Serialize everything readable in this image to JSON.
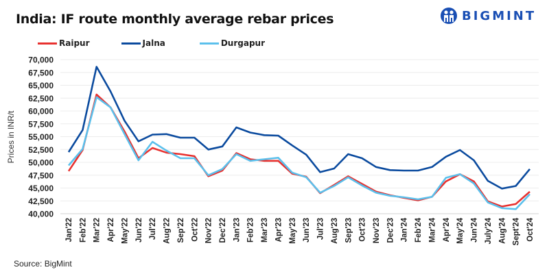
{
  "logo": {
    "text": "BIGMINT",
    "icon": "bigmint-people-icon",
    "color": "#1a4fb4"
  },
  "source": "Source: BigMint",
  "chart_data": {
    "type": "line",
    "title": "India: IF route monthly average rebar prices",
    "xlabel": "",
    "ylabel": "Prices in INR/t",
    "ylim": [
      40000,
      70000
    ],
    "yticks": [
      40000,
      42500,
      45000,
      47500,
      50000,
      52500,
      55000,
      57500,
      60000,
      62500,
      65000,
      67500,
      70000
    ],
    "ytick_labels": [
      "40,000",
      "42,500",
      "45,000",
      "47,500",
      "50,000",
      "52,500",
      "55,000",
      "57,500",
      "60,000",
      "62,500",
      "65,000",
      "67,500",
      "70,000"
    ],
    "grid": true,
    "legend_position": "top-left",
    "x": [
      "Jan'22",
      "Feb'22",
      "Mar'22",
      "Apr'22",
      "May'22",
      "Jun'22",
      "Jul'22",
      "Aug'22",
      "Sep'22",
      "Oct'22",
      "Nov'22",
      "Dec'22",
      "Jan'23",
      "Feb'23",
      "Mar'23",
      "Apr'23",
      "May'23",
      "Jun'23",
      "Jul'23",
      "Aug'23",
      "Sep'23",
      "Oct'23",
      "Nov'23",
      "Dec'23",
      "Jan'24",
      "Feb'24",
      "Mar'24",
      "Apr'24",
      "May'24",
      "Jun'24",
      "July'24",
      "Aug'24",
      "Sept'24",
      "Oct'24"
    ],
    "series": [
      {
        "name": "Raipur",
        "color": "#e8312f",
        "values": [
          48300,
          52400,
          63200,
          60700,
          56000,
          50800,
          52800,
          51900,
          51600,
          51200,
          47300,
          48400,
          51800,
          50600,
          50300,
          50300,
          47800,
          47200,
          44000,
          45600,
          47300,
          45800,
          44300,
          43600,
          43100,
          42600,
          43300,
          46300,
          47700,
          46300,
          42400,
          41400,
          41900,
          44300
        ]
      },
      {
        "name": "Jalna",
        "color": "#0a4a9e",
        "values": [
          52000,
          56300,
          68600,
          63800,
          58100,
          54100,
          55400,
          55500,
          54800,
          54800,
          52500,
          53100,
          56800,
          55800,
          55300,
          55200,
          53300,
          51500,
          48100,
          48800,
          51600,
          50800,
          49100,
          48500,
          48400,
          48400,
          49100,
          51100,
          52400,
          50400,
          46400,
          44900,
          45400,
          48700
        ]
      },
      {
        "name": "Durgapur",
        "color": "#5bc0ec",
        "values": [
          49400,
          52600,
          62700,
          60700,
          55500,
          50400,
          54000,
          52300,
          50800,
          50800,
          47500,
          48700,
          51600,
          50300,
          50600,
          50900,
          48000,
          47100,
          44100,
          45400,
          47100,
          45500,
          44100,
          43500,
          43200,
          42800,
          43300,
          47000,
          47700,
          45900,
          42200,
          41100,
          40900,
          43800
        ]
      }
    ]
  }
}
